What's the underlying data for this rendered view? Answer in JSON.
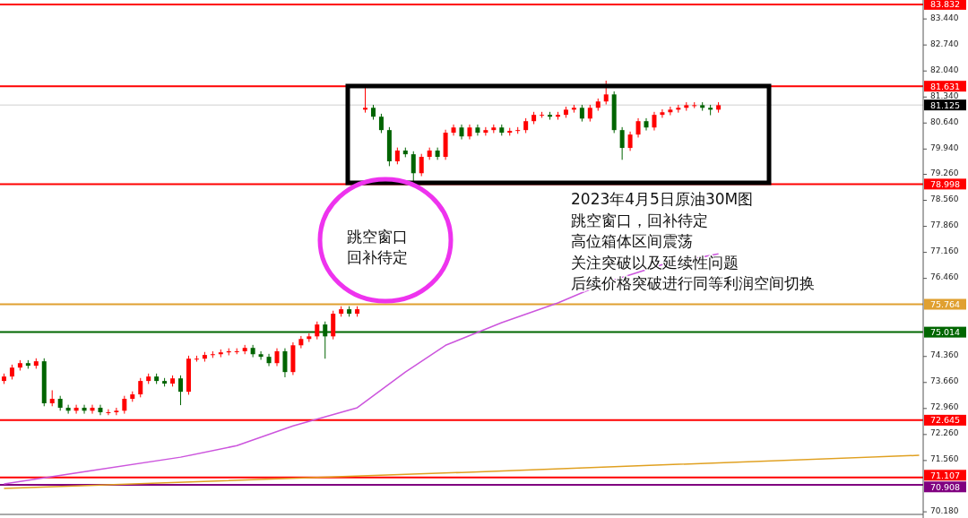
{
  "chart_data": {
    "type": "candlestick",
    "categories": [
      null,
      null,
      null,
      null,
      null,
      null,
      null,
      null,
      null,
      null,
      null,
      null,
      null,
      null,
      null,
      null,
      null,
      null,
      null,
      null,
      null,
      null,
      null,
      null,
      null,
      null,
      null,
      null,
      null,
      null,
      null,
      null,
      null,
      null,
      null,
      null,
      null,
      null,
      null,
      null,
      null,
      null,
      null,
      null,
      null,
      null,
      null,
      null,
      null,
      null,
      null,
      null,
      null,
      null,
      null,
      null,
      null,
      null,
      null,
      null,
      null,
      null,
      null,
      null,
      null,
      null,
      null,
      null,
      null,
      null,
      null,
      null,
      null,
      null,
      null,
      null,
      null,
      null,
      null,
      null,
      null,
      null,
      null,
      null,
      null,
      null,
      null,
      null,
      null,
      null,
      null,
      null,
      null,
      null,
      null,
      null,
      null,
      null,
      null,
      null,
      null,
      null,
      null,
      null,
      null,
      null,
      null,
      null,
      null,
      null,
      null,
      null,
      null,
      null,
      null
    ],
    "ohlc": [
      [
        73.7,
        73.9,
        73.62,
        73.82
      ],
      [
        73.82,
        74.14,
        73.74,
        74.06
      ],
      [
        74.06,
        74.26,
        73.98,
        74.18
      ],
      [
        74.18,
        74.26,
        74.03,
        74.11
      ],
      [
        74.11,
        74.31,
        74.03,
        74.23
      ],
      [
        74.23,
        74.31,
        73.02,
        73.1
      ],
      [
        73.1,
        73.45,
        73.02,
        73.22
      ],
      [
        73.22,
        73.3,
        72.9,
        72.98
      ],
      [
        72.98,
        73.06,
        72.82,
        72.9
      ],
      [
        72.9,
        73.06,
        72.82,
        72.98
      ],
      [
        72.98,
        73.06,
        72.82,
        72.9
      ],
      [
        72.9,
        73.06,
        72.82,
        72.98
      ],
      [
        72.98,
        73.06,
        72.78,
        72.86
      ],
      [
        72.86,
        72.94,
        72.78,
        72.86
      ],
      [
        72.86,
        72.98,
        72.78,
        72.9
      ],
      [
        72.9,
        73.3,
        72.82,
        73.22
      ],
      [
        73.22,
        73.42,
        73.14,
        73.34
      ],
      [
        73.34,
        73.78,
        73.26,
        73.7
      ],
      [
        73.7,
        73.9,
        73.62,
        73.82
      ],
      [
        73.82,
        73.9,
        73.62,
        73.7
      ],
      [
        73.7,
        73.78,
        73.55,
        73.63
      ],
      [
        73.63,
        73.85,
        73.55,
        73.77
      ],
      [
        73.77,
        73.85,
        73.05,
        73.41
      ],
      [
        73.41,
        74.38,
        73.33,
        74.3
      ],
      [
        74.3,
        74.38,
        74.22,
        74.3
      ],
      [
        74.3,
        74.48,
        74.22,
        74.4
      ],
      [
        74.4,
        74.5,
        74.32,
        74.42
      ],
      [
        74.42,
        74.55,
        74.34,
        74.47
      ],
      [
        74.47,
        74.58,
        74.39,
        74.5
      ],
      [
        74.5,
        74.58,
        74.42,
        74.5
      ],
      [
        74.5,
        74.67,
        74.42,
        74.59
      ],
      [
        74.59,
        74.67,
        74.34,
        74.42
      ],
      [
        74.42,
        74.5,
        74.27,
        74.35
      ],
      [
        74.35,
        74.43,
        74.1,
        74.18
      ],
      [
        74.18,
        74.58,
        74.1,
        74.5
      ],
      [
        74.5,
        74.58,
        73.8,
        73.94
      ],
      [
        73.94,
        74.74,
        73.86,
        74.66
      ],
      [
        74.66,
        74.91,
        74.58,
        74.83
      ],
      [
        74.83,
        74.98,
        74.75,
        74.9
      ],
      [
        74.9,
        75.3,
        74.82,
        75.22
      ],
      [
        75.22,
        75.3,
        74.3,
        74.9
      ],
      [
        74.9,
        75.59,
        74.82,
        75.51
      ],
      [
        75.51,
        75.71,
        75.43,
        75.63
      ],
      [
        75.63,
        75.71,
        75.43,
        75.51
      ],
      [
        75.51,
        75.71,
        75.43,
        75.63
      ],
      [
        81.0,
        81.61,
        80.92,
        81.05
      ],
      [
        81.05,
        81.13,
        80.73,
        80.81
      ],
      [
        80.81,
        80.89,
        80.37,
        80.45
      ],
      [
        80.45,
        80.53,
        79.48,
        79.61
      ],
      [
        79.61,
        79.98,
        79.53,
        79.9
      ],
      [
        79.9,
        79.98,
        79.72,
        79.8
      ],
      [
        79.8,
        79.88,
        79.05,
        79.29
      ],
      [
        79.29,
        79.81,
        79.21,
        79.73
      ],
      [
        79.73,
        79.98,
        79.65,
        79.9
      ],
      [
        79.9,
        79.98,
        79.65,
        79.73
      ],
      [
        79.73,
        80.46,
        79.65,
        80.38
      ],
      [
        80.38,
        80.6,
        80.3,
        80.52
      ],
      [
        80.52,
        80.6,
        80.2,
        80.28
      ],
      [
        80.28,
        80.6,
        80.2,
        80.52
      ],
      [
        80.52,
        80.6,
        80.3,
        80.38
      ],
      [
        80.38,
        80.53,
        80.3,
        80.45
      ],
      [
        80.45,
        80.6,
        80.37,
        80.52
      ],
      [
        80.52,
        80.6,
        80.3,
        80.38
      ],
      [
        80.38,
        80.51,
        80.3,
        80.43
      ],
      [
        80.43,
        80.53,
        80.35,
        80.45
      ],
      [
        80.45,
        80.77,
        80.37,
        80.69
      ],
      [
        80.69,
        80.94,
        80.61,
        80.86
      ],
      [
        80.86,
        80.94,
        80.78,
        80.86
      ],
      [
        80.86,
        80.94,
        80.73,
        80.81
      ],
      [
        80.81,
        80.94,
        80.73,
        80.86
      ],
      [
        80.86,
        81.08,
        80.78,
        81.0
      ],
      [
        81.0,
        81.13,
        80.92,
        81.05
      ],
      [
        81.05,
        81.13,
        80.68,
        80.76
      ],
      [
        80.76,
        81.13,
        80.68,
        81.05
      ],
      [
        81.05,
        81.3,
        80.97,
        81.22
      ],
      [
        81.22,
        81.78,
        81.14,
        81.41
      ],
      [
        81.41,
        81.49,
        80.37,
        80.45
      ],
      [
        80.45,
        80.53,
        79.65,
        79.97
      ],
      [
        79.97,
        80.41,
        79.89,
        80.33
      ],
      [
        80.33,
        80.77,
        80.25,
        80.69
      ],
      [
        80.69,
        80.77,
        80.44,
        80.52
      ],
      [
        80.52,
        80.94,
        80.44,
        80.86
      ],
      [
        80.86,
        81.01,
        80.78,
        80.93
      ],
      [
        80.93,
        81.08,
        80.85,
        81.0
      ],
      [
        81.0,
        81.13,
        80.92,
        81.05
      ],
      [
        81.05,
        81.2,
        80.97,
        81.12
      ],
      [
        81.12,
        81.2,
        81.04,
        81.12
      ],
      [
        81.12,
        81.2,
        80.97,
        81.05
      ],
      [
        81.05,
        81.13,
        80.85,
        81.0
      ],
      [
        81.0,
        81.2,
        80.92,
        81.12
      ],
      null,
      null,
      null,
      null,
      null,
      null,
      null,
      null,
      null,
      null,
      null,
      null,
      null,
      null,
      null,
      null,
      null,
      null,
      null,
      null,
      null,
      null,
      null,
      null,
      null
    ],
    "series": [
      {
        "type": "line",
        "color": "#cc55dd",
        "values": [
          70.93,
          null,
          null,
          null,
          null,
          null,
          null,
          null,
          null,
          null,
          null,
          71.29,
          null,
          null,
          null,
          null,
          null,
          null,
          null,
          null,
          null,
          null,
          71.65,
          null,
          null,
          null,
          null,
          null,
          null,
          71.96,
          null,
          null,
          null,
          null,
          null,
          null,
          72.49,
          null,
          null,
          null,
          null,
          null,
          null,
          null,
          72.98,
          null,
          null,
          null,
          null,
          null,
          73.94,
          null,
          null,
          null,
          null,
          74.66,
          null,
          null,
          null,
          null,
          null,
          null,
          75.27,
          null,
          null,
          null,
          null,
          null,
          null,
          75.8,
          null,
          null,
          null,
          null,
          null,
          76.35,
          null,
          null,
          null,
          null,
          null,
          null,
          76.83,
          null,
          null,
          null,
          null,
          null,
          null,
          77.12,
          null,
          null,
          null,
          null,
          null,
          null,
          null,
          null,
          null,
          null,
          null,
          null,
          null,
          null,
          null,
          null,
          null,
          null,
          null,
          null,
          null,
          null,
          null,
          null,
          null
        ]
      },
      {
        "type": "line",
        "color": "#e0a020",
        "values": [
          70.81,
          null,
          null,
          null,
          null,
          null,
          null,
          null,
          null,
          null,
          null,
          null,
          null,
          null,
          null,
          null,
          null,
          null,
          null,
          null,
          null,
          null,
          null,
          null,
          null,
          null,
          null,
          null,
          null,
          null,
          null,
          null,
          null,
          null,
          null,
          null,
          null,
          null,
          null,
          null,
          null,
          null,
          null,
          null,
          null,
          null,
          null,
          null,
          null,
          null,
          null,
          null,
          null,
          null,
          null,
          null,
          null,
          71.24,
          null,
          null,
          null,
          null,
          null,
          null,
          null,
          null,
          null,
          null,
          null,
          null,
          null,
          null,
          null,
          null,
          null,
          null,
          null,
          null,
          null,
          null,
          null,
          null,
          null,
          null,
          null,
          null,
          null,
          null,
          null,
          null,
          null,
          null,
          null,
          null,
          null,
          null,
          null,
          null,
          null,
          null,
          null,
          null,
          null,
          null,
          null,
          null,
          null,
          null,
          null,
          null,
          null,
          null,
          null,
          null,
          71.7
        ]
      }
    ],
    "ylim": [
      70.11,
      83.95
    ],
    "yticks": [
      {
        "value": 83.44,
        "label": "83.440"
      },
      {
        "value": 82.74,
        "label": "82.740"
      },
      {
        "value": 82.04,
        "label": "82.040"
      },
      {
        "value": 81.34,
        "label": "81.340"
      },
      {
        "value": 80.64,
        "label": "80.640"
      },
      {
        "value": 79.94,
        "label": "79.940"
      },
      {
        "value": 79.26,
        "label": "79.260"
      },
      {
        "value": 78.56,
        "label": "78.560"
      },
      {
        "value": 77.86,
        "label": "77.860"
      },
      {
        "value": 77.16,
        "label": "77.160"
      },
      {
        "value": 76.46,
        "label": "76.460"
      },
      {
        "value": 74.36,
        "label": "74.360"
      },
      {
        "value": 73.66,
        "label": "73.660"
      },
      {
        "value": 72.96,
        "label": "72.960"
      },
      {
        "value": 72.26,
        "label": "72.260"
      },
      {
        "value": 71.56,
        "label": "71.560"
      },
      {
        "value": 70.18,
        "label": "70.180"
      }
    ],
    "tick_labels": "y",
    "ref_lines": [
      {
        "axis": "y",
        "value": 83.832,
        "label": "83.832",
        "color": "#ff0000"
      },
      {
        "axis": "y",
        "value": 81.631,
        "label": "81.631",
        "color": "#ff0000"
      },
      {
        "axis": "y",
        "value": 81.125,
        "label": "81.125",
        "color": "#d0d0d0"
      },
      {
        "axis": "y",
        "value": 78.998,
        "label": "78.998",
        "color": "#ff0000"
      },
      {
        "axis": "y",
        "value": 75.764,
        "label": "75.764",
        "color": "#e0a030"
      },
      {
        "axis": "y",
        "value": 75.014,
        "label": "75.014",
        "color": "#006600"
      },
      {
        "axis": "y",
        "value": 72.645,
        "label": "72.645",
        "color": "#ff0000"
      },
      {
        "axis": "y",
        "value": 71.107,
        "label": "71.107",
        "color": "#ff0000"
      },
      {
        "axis": "y",
        "value": 70.908,
        "label": "70.908",
        "color": "#800080"
      }
    ],
    "annotations": [
      "跳空窗口",
      "回补待定",
      "2023年4月5日原油30M图",
      "跳空窗口，回补待定",
      "高位箱体区间震荡",
      "关注突破以及延续性问题",
      "后续价格突破进行同等利润空间切换"
    ]
  }
}
